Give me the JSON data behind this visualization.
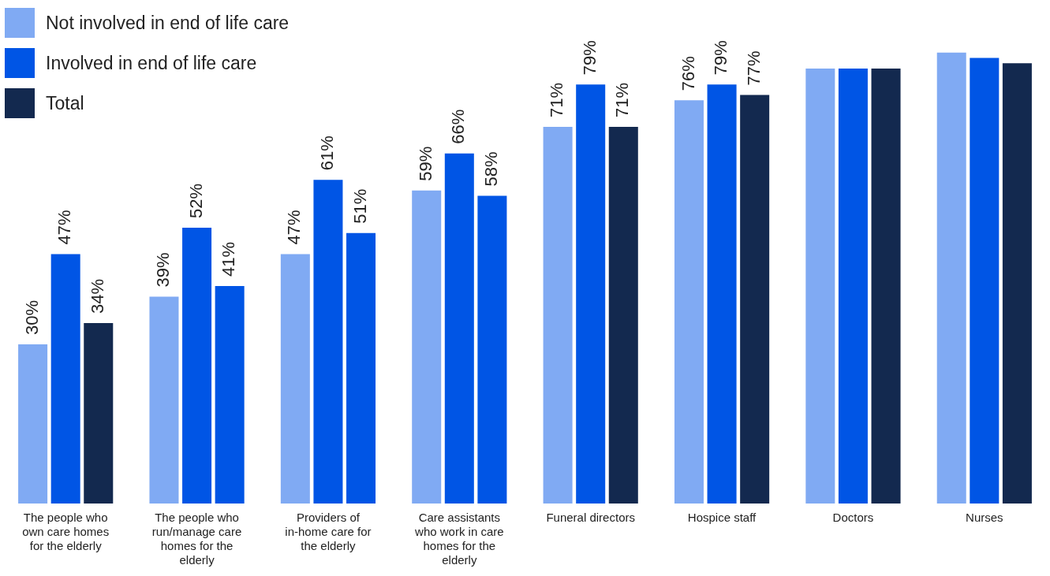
{
  "chart_data": {
    "type": "bar",
    "categories": [
      "The people who own care homes for the elderly",
      "The people who run/manage care homes for the elderly",
      "Providers of in-home care for the elderly",
      "Care assistants who work in care homes for the elderly",
      "Funeral directors",
      "Hospice staff",
      "Doctors",
      "Nurses"
    ],
    "series": [
      {
        "name": "Not involved in end of life care",
        "color": "#80aaf3",
        "values": [
          30,
          39,
          47,
          59,
          71,
          76,
          82,
          85
        ],
        "value_labels": [
          "30%",
          "39%",
          "47%",
          "59%",
          "71%",
          "76%",
          null,
          null
        ]
      },
      {
        "name": "Involved in end of life care",
        "color": "#0055e5",
        "values": [
          47,
          52,
          61,
          66,
          79,
          79,
          82,
          84
        ],
        "value_labels": [
          "47%",
          "52%",
          "61%",
          "66%",
          "79%",
          "79%",
          null,
          null
        ]
      },
      {
        "name": "Total",
        "color": "#13294f",
        "colors": [
          "#13294f",
          "#0055e5",
          "#0055e5",
          "#0055e5",
          "#13294f",
          "#13294f",
          "#13294f",
          "#13294f"
        ],
        "values": [
          34,
          41,
          51,
          58,
          71,
          77,
          82,
          83
        ],
        "value_labels": [
          "34%",
          "41%",
          "51%",
          "58%",
          "71%",
          "77%",
          null,
          null
        ]
      }
    ],
    "ylim": [
      0,
      86
    ],
    "tick_labels": "x",
    "grid": false,
    "legend": "top left"
  }
}
